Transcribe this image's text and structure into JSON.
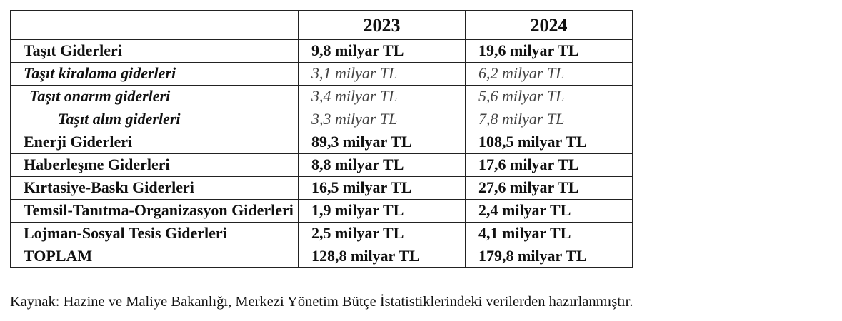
{
  "table": {
    "header": [
      "2023",
      "2024"
    ],
    "rows": [
      [
        "Taşıt Giderleri",
        "9,8 milyar TL",
        "19,6 milyar TL"
      ],
      [
        "Taşıt kiralama giderleri",
        "3,1 milyar TL",
        "6,2 milyar TL"
      ],
      [
        "Taşıt onarım giderleri",
        "3,4 milyar TL",
        "5,6 milyar TL"
      ],
      [
        "Taşıt alım giderleri",
        "3,3 milyar TL",
        "7,8 milyar TL"
      ],
      [
        "Enerji Giderleri",
        "89,3 milyar TL",
        "108,5 milyar TL"
      ],
      [
        "Haberleşme Giderleri",
        "8,8 milyar TL",
        "17,6 milyar TL"
      ],
      [
        "Kırtasiye-Baskı Giderleri",
        "16,5 milyar TL",
        "27,6 milyar TL"
      ],
      [
        "Temsil-Tanıtma-Organizasyon Giderleri",
        "1,9 milyar TL",
        "2,4 milyar TL"
      ],
      [
        "Lojman-Sosyal Tesis Giderleri",
        "2,5 milyar TL",
        "4,1 milyar TL"
      ],
      [
        "TOPLAM",
        "128,8 milyar TL",
        "179,8 milyar TL"
      ]
    ]
  },
  "source": "Kaynak: Hazine ve Maliye Bakanlığı, Merkezi Yönetim Bütçe İstatistiklerindeki verilerden hazırlanmıştır."
}
